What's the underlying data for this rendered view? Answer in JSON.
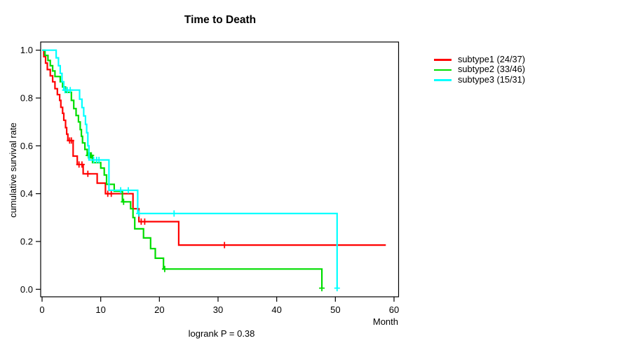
{
  "chart": {
    "title": "Time to Death",
    "x_axis_label": "Month",
    "y_axis_label": "cumulative survival rate",
    "footnote": "logrank P = 0.38"
  },
  "legend": {
    "items": [
      {
        "label": "subtype1 (24/37)",
        "color": "#FF0000"
      },
      {
        "label": "subtype2 (33/46)",
        "color": "#00DD00"
      },
      {
        "label": "subtype3 (15/31)",
        "color": "#00FFFF"
      }
    ]
  },
  "chart_data": {
    "type": "line",
    "subtype": "kaplan-meier-step",
    "title": "Time to Death",
    "xlabel": "Month",
    "ylabel": "cumulative survival rate",
    "annotation": "logrank P = 0.38",
    "xlim": [
      0,
      60
    ],
    "ylim": [
      0,
      1
    ],
    "x_ticks": [
      0,
      10,
      20,
      30,
      40,
      50,
      60
    ],
    "y_ticks": [
      0.0,
      0.2,
      0.4,
      0.6,
      0.8,
      1.0
    ],
    "grid": false,
    "legend_position": "right-outside",
    "series": [
      {
        "id": "subtype1",
        "label": "subtype1 (24/37)",
        "events": 24,
        "n": 37,
        "color": "#FF0000",
        "end_time": 58.6,
        "steps": [
          [
            0,
            1.0
          ],
          [
            0.3,
            0.973
          ],
          [
            0.6,
            0.946
          ],
          [
            0.9,
            0.919
          ],
          [
            1.4,
            0.893
          ],
          [
            1.8,
            0.868
          ],
          [
            2.2,
            0.839
          ],
          [
            2.6,
            0.814
          ],
          [
            3.0,
            0.79
          ],
          [
            3.2,
            0.761
          ],
          [
            3.5,
            0.736
          ],
          [
            3.7,
            0.707
          ],
          [
            4.0,
            0.676
          ],
          [
            4.2,
            0.649
          ],
          [
            4.4,
            0.622
          ],
          [
            5.3,
            0.557
          ],
          [
            6.0,
            0.522
          ],
          [
            7.0,
            0.483
          ],
          [
            9.4,
            0.444
          ],
          [
            10.8,
            0.4
          ],
          [
            15.5,
            0.337
          ],
          [
            16.5,
            0.283
          ],
          [
            23.3,
            0.185
          ]
        ],
        "censors": [
          [
            4.7,
            0.622
          ],
          [
            5.0,
            0.622
          ],
          [
            6.3,
            0.522
          ],
          [
            6.8,
            0.522
          ],
          [
            7.8,
            0.483
          ],
          [
            11.2,
            0.4
          ],
          [
            11.8,
            0.4
          ],
          [
            16.9,
            0.283
          ],
          [
            17.5,
            0.283
          ],
          [
            31.1,
            0.185
          ]
        ]
      },
      {
        "id": "subtype2",
        "label": "subtype2 (33/46)",
        "events": 33,
        "n": 46,
        "color": "#00DD00",
        "end_time": 47.7,
        "steps": [
          [
            0,
            1.0
          ],
          [
            0.5,
            0.978
          ],
          [
            1.0,
            0.957
          ],
          [
            1.4,
            0.935
          ],
          [
            1.8,
            0.913
          ],
          [
            2.2,
            0.89
          ],
          [
            3.1,
            0.868
          ],
          [
            3.5,
            0.846
          ],
          [
            4.0,
            0.824
          ],
          [
            5.0,
            0.79
          ],
          [
            5.4,
            0.756
          ],
          [
            5.8,
            0.727
          ],
          [
            6.2,
            0.7
          ],
          [
            6.5,
            0.668
          ],
          [
            6.7,
            0.64
          ],
          [
            6.9,
            0.612
          ],
          [
            7.3,
            0.585
          ],
          [
            7.7,
            0.56
          ],
          [
            8.6,
            0.53
          ],
          [
            10.0,
            0.507
          ],
          [
            10.6,
            0.478
          ],
          [
            11.0,
            0.439
          ],
          [
            12.3,
            0.41
          ],
          [
            13.7,
            0.366
          ],
          [
            15.1,
            0.337
          ],
          [
            15.5,
            0.3
          ],
          [
            15.8,
            0.253
          ],
          [
            17.3,
            0.215
          ],
          [
            18.5,
            0.17
          ],
          [
            19.3,
            0.13
          ],
          [
            20.7,
            0.085
          ],
          [
            47.7,
            0.005
          ]
        ],
        "censors": [
          [
            7.9,
            0.56
          ],
          [
            8.2,
            0.56
          ],
          [
            8.4,
            0.56
          ],
          [
            13.9,
            0.366
          ],
          [
            20.9,
            0.085
          ],
          [
            47.7,
            0.005
          ]
        ]
      },
      {
        "id": "subtype3",
        "label": "subtype3 (15/31)",
        "events": 15,
        "n": 31,
        "color": "#00FFFF",
        "end_time": 50.3,
        "steps": [
          [
            0,
            1.0
          ],
          [
            2.4,
            0.968
          ],
          [
            2.8,
            0.935
          ],
          [
            3.1,
            0.903
          ],
          [
            3.4,
            0.868
          ],
          [
            3.7,
            0.833
          ],
          [
            6.4,
            0.795
          ],
          [
            6.8,
            0.76
          ],
          [
            7.1,
            0.725
          ],
          [
            7.4,
            0.69
          ],
          [
            7.6,
            0.655
          ],
          [
            7.8,
            0.6
          ],
          [
            8.0,
            0.541
          ],
          [
            11.4,
            0.414
          ],
          [
            16.3,
            0.317
          ],
          [
            50.3,
            0.005
          ]
        ],
        "censors": [
          [
            3.9,
            0.833
          ],
          [
            4.3,
            0.833
          ],
          [
            4.8,
            0.833
          ],
          [
            8.8,
            0.541
          ],
          [
            9.3,
            0.541
          ],
          [
            9.7,
            0.541
          ],
          [
            13.4,
            0.414
          ],
          [
            14.7,
            0.414
          ],
          [
            16.5,
            0.317
          ],
          [
            22.5,
            0.317
          ],
          [
            50.3,
            0.005
          ]
        ]
      }
    ]
  }
}
